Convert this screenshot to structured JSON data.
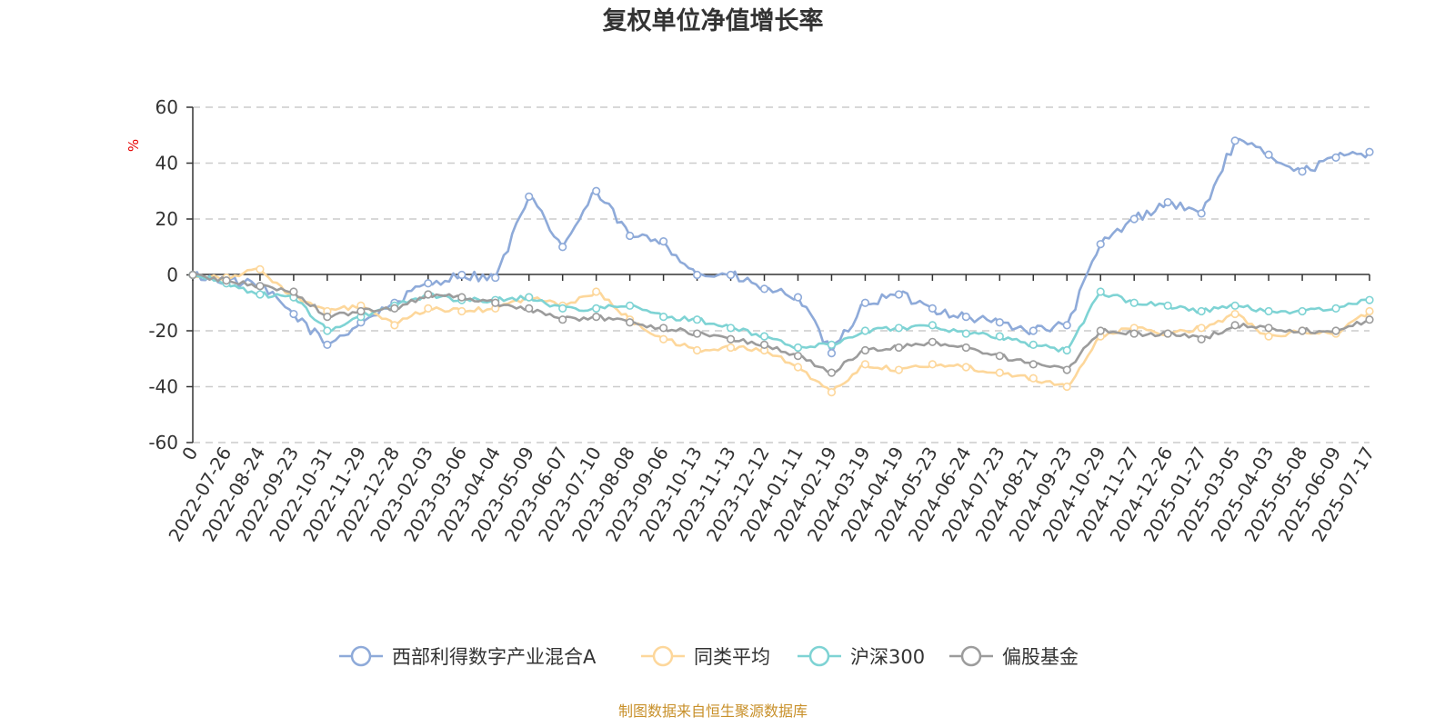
{
  "chart_data": {
    "type": "line",
    "title": "复权单位净值增长率",
    "ylabel": "%",
    "ylim": [
      -60,
      60
    ],
    "yticks": [
      "60",
      "40",
      "20",
      "0",
      "-20",
      "-40",
      "-60"
    ],
    "x_tick_labels": [
      "0",
      "2022-07-26",
      "2022-08-24",
      "2022-09-23",
      "2022-10-31",
      "2022-11-29",
      "2022-12-28",
      "2023-02-03",
      "2023-03-06",
      "2023-04-04",
      "2023-05-09",
      "2023-06-07",
      "2023-07-10",
      "2023-08-08",
      "2023-09-06",
      "2023-10-13",
      "2023-11-13",
      "2023-12-12",
      "2024-01-11",
      "2024-02-19",
      "2024-03-19",
      "2024-04-19",
      "2024-05-23",
      "2024-06-24",
      "2024-07-23",
      "2024-08-21",
      "2024-09-23",
      "2024-10-29",
      "2024-11-27",
      "2024-12-26",
      "2025-01-27",
      "2025-03-05",
      "2025-04-03",
      "2025-05-08",
      "2025-06-09",
      "2025-07-17"
    ],
    "grid": "horizontal-dashed",
    "legend_position": "bottom",
    "series": [
      {
        "name": "西部利得数字产业混合A",
        "color": "#8eaad9",
        "values": [
          0,
          -2,
          -4,
          -14,
          -25,
          -17,
          -10,
          -3,
          0,
          -1,
          28,
          10,
          30,
          14,
          12,
          0,
          0,
          -5,
          -8,
          -28,
          -10,
          -7,
          -12,
          -15,
          -17,
          -20,
          -18,
          11,
          20,
          26,
          22,
          48,
          43,
          37,
          42,
          44
        ]
      },
      {
        "name": "同类平均",
        "color": "#fdd79b",
        "values": [
          0,
          -1,
          2,
          -8,
          -13,
          -11,
          -18,
          -12,
          -13,
          -12,
          -8,
          -11,
          -6,
          -16,
          -23,
          -27,
          -26,
          -27,
          -33,
          -42,
          -32,
          -34,
          -32,
          -33,
          -35,
          -37,
          -40,
          -22,
          -19,
          -21,
          -19,
          -14,
          -22,
          -20,
          -21,
          -13
        ]
      },
      {
        "name": "沪深300",
        "color": "#7ed3d4",
        "values": [
          0,
          -3,
          -7,
          -8,
          -20,
          -15,
          -11,
          -7,
          -9,
          -9,
          -8,
          -12,
          -12,
          -11,
          -15,
          -16,
          -19,
          -22,
          -26,
          -25,
          -20,
          -19,
          -18,
          -21,
          -22,
          -25,
          -27,
          -6,
          -10,
          -11,
          -13,
          -11,
          -13,
          -13,
          -12,
          -9
        ]
      },
      {
        "name": "偏股基金",
        "color": "#9c9c9c",
        "values": [
          0,
          -2,
          -4,
          -6,
          -15,
          -13,
          -12,
          -7,
          -8,
          -10,
          -12,
          -16,
          -15,
          -17,
          -19,
          -21,
          -23,
          -25,
          -29,
          -35,
          -27,
          -26,
          -24,
          -26,
          -29,
          -32,
          -34,
          -20,
          -21,
          -21,
          -23,
          -18,
          -19,
          -20,
          -20,
          -16
        ]
      }
    ]
  },
  "footer": {
    "source": "制图数据来自恒生聚源数据库"
  }
}
